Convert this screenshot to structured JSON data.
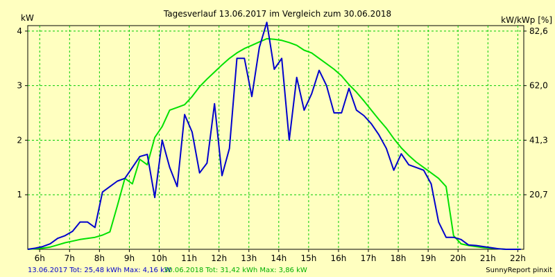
{
  "colors": {
    "background": "#ffffc0",
    "plot_area": "#ffffc0",
    "grid": "#00cc00",
    "series_2017": "#0000cc",
    "series_2018": "#00e000",
    "text": "#000000"
  },
  "footer": {
    "legend_2017": "13.06.2017 Tot: 25,48 kWh Max: 4,16 kW",
    "legend_2018": "30.06.2018 Tot: 31,42 kWh Max: 3,86 kW",
    "brand": "SunnyReport pinxit"
  },
  "chart_data": {
    "type": "line",
    "title": "Tagesverlauf 13.06.2017 im Vergleich zum 30.06.2018",
    "ylabel": "kW",
    "ylabel_right": "kW/kWp [%]",
    "ylim": [
      0,
      4.1
    ],
    "xlim": [
      5.6,
      22.2
    ],
    "grid": true,
    "x_ticks": [
      6,
      7,
      8,
      9,
      10,
      11,
      12,
      13,
      14,
      15,
      16,
      17,
      18,
      19,
      20,
      21,
      22
    ],
    "x_tick_labels": [
      "6h",
      "7h",
      "8h",
      "9h",
      "10h",
      "11h",
      "12h",
      "13h",
      "14h",
      "15h",
      "16h",
      "17h",
      "18h",
      "19h",
      "20h",
      "21h",
      "22h"
    ],
    "y_ticks": [
      1,
      2,
      3,
      4
    ],
    "y_tick_labels": [
      "1",
      "2",
      "3",
      "4"
    ],
    "y2_ticks": [
      1,
      2,
      3,
      4
    ],
    "y2_tick_labels": [
      "20,7",
      "41,3",
      "62,0",
      "82,6"
    ],
    "series": [
      {
        "name": "13.06.2017",
        "color": "#0000cc",
        "x": [
          5.6,
          5.85,
          6.1,
          6.35,
          6.6,
          6.85,
          7.1,
          7.35,
          7.6,
          7.85,
          8.1,
          8.35,
          8.6,
          8.85,
          9.1,
          9.35,
          9.6,
          9.85,
          10.1,
          10.35,
          10.6,
          10.85,
          11.1,
          11.35,
          11.6,
          11.85,
          12.1,
          12.35,
          12.6,
          12.85,
          13.1,
          13.35,
          13.6,
          13.85,
          14.1,
          14.35,
          14.6,
          14.85,
          15.1,
          15.35,
          15.6,
          15.85,
          16.1,
          16.35,
          16.6,
          16.85,
          17.1,
          17.35,
          17.6,
          17.85,
          18.1,
          18.35,
          18.6,
          18.85,
          19.1,
          19.35,
          19.6,
          19.85,
          20.1,
          20.35,
          20.6,
          20.85,
          21.1,
          21.35,
          21.6,
          21.85,
          22.1
        ],
        "y": [
          0,
          0.02,
          0.05,
          0.1,
          0.2,
          0.25,
          0.33,
          0.5,
          0.5,
          0.4,
          1.05,
          1.15,
          1.25,
          1.3,
          1.5,
          1.7,
          1.74,
          0.95,
          2.0,
          1.5,
          1.15,
          2.47,
          2.15,
          1.4,
          1.58,
          2.67,
          1.35,
          1.85,
          3.5,
          3.5,
          2.8,
          3.7,
          4.16,
          3.3,
          3.5,
          2.0,
          3.15,
          2.55,
          2.85,
          3.28,
          3.0,
          2.5,
          2.5,
          2.95,
          2.55,
          2.45,
          2.3,
          2.1,
          1.85,
          1.45,
          1.75,
          1.55,
          1.5,
          1.45,
          1.2,
          0.5,
          0.22,
          0.22,
          0.18,
          0.08,
          0.07,
          0.05,
          0.03,
          0.01,
          0,
          0,
          0
        ]
      },
      {
        "name": "30.06.2018",
        "color": "#00e000",
        "x": [
          5.6,
          5.85,
          6.1,
          6.35,
          6.6,
          6.85,
          7.1,
          7.35,
          7.6,
          7.85,
          8.1,
          8.35,
          8.6,
          8.85,
          9.1,
          9.35,
          9.6,
          9.85,
          10.1,
          10.35,
          10.6,
          10.85,
          11.1,
          11.35,
          11.6,
          11.85,
          12.1,
          12.35,
          12.6,
          12.85,
          13.1,
          13.35,
          13.6,
          13.85,
          14.1,
          14.35,
          14.6,
          14.85,
          15.1,
          15.35,
          15.6,
          15.85,
          16.1,
          16.35,
          16.6,
          16.85,
          17.1,
          17.35,
          17.6,
          17.85,
          18.1,
          18.35,
          18.6,
          18.85,
          19.1,
          19.35,
          19.6,
          19.85,
          20.1,
          20.35,
          20.6,
          20.85,
          21.1,
          21.35,
          21.6,
          21.85,
          22.1
        ],
        "y": [
          0,
          0.01,
          0.02,
          0.04,
          0.08,
          0.12,
          0.15,
          0.18,
          0.2,
          0.22,
          0.26,
          0.32,
          0.8,
          1.3,
          1.2,
          1.65,
          1.55,
          2.05,
          2.25,
          2.55,
          2.6,
          2.65,
          2.8,
          2.98,
          3.12,
          3.25,
          3.38,
          3.5,
          3.6,
          3.68,
          3.74,
          3.8,
          3.86,
          3.85,
          3.83,
          3.79,
          3.74,
          3.65,
          3.6,
          3.5,
          3.4,
          3.3,
          3.18,
          3.02,
          2.88,
          2.72,
          2.55,
          2.38,
          2.22,
          2.03,
          1.86,
          1.72,
          1.6,
          1.5,
          1.4,
          1.3,
          1.15,
          0.25,
          0.1,
          0.07,
          0.05,
          0.03,
          0.02,
          0.01,
          0,
          0,
          0
        ]
      }
    ]
  }
}
